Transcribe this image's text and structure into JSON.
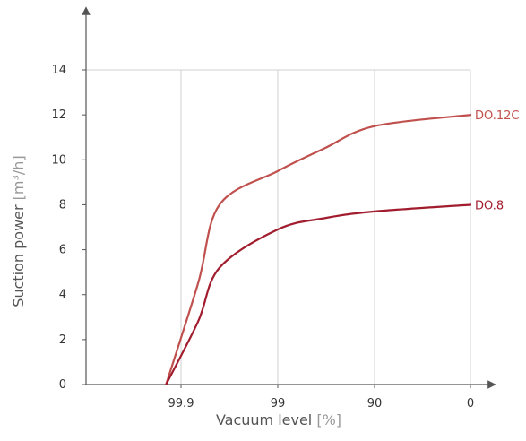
{
  "chart_data": {
    "type": "line",
    "title": "",
    "xlabel": "Vacuum level",
    "xlabel_unit": "%",
    "ylabel": "Suction power",
    "ylabel_unit": "m³/h",
    "x_scale": "log-remaining (ticks show vacuum % at 0.1, 1, 10, 100 % remaining pressure)",
    "x_ticks": [
      "99.9",
      "99",
      "90",
      "0"
    ],
    "y_ticks": [
      0,
      2,
      4,
      6,
      8,
      10,
      12,
      14
    ],
    "ylim": [
      0,
      14
    ],
    "grid": "vertical gridlines at x ticks, horizontal at y = 14",
    "colors": {
      "DO.12C": "#c0504d",
      "DO.8": "#a11d2e",
      "axis": "#555555",
      "grid": "#d0d0d0"
    },
    "series": [
      {
        "name": "DO.12C",
        "label": "DO.12C",
        "points": [
          {
            "x": 99.93,
            "y": 0
          },
          {
            "x": 99.85,
            "y": 4.5
          },
          {
            "x": 99.75,
            "y": 8.0
          },
          {
            "x": 99.0,
            "y": 9.5
          },
          {
            "x": 97.0,
            "y": 10.5
          },
          {
            "x": 90.0,
            "y": 11.5
          },
          {
            "x": 0,
            "y": 12.0
          }
        ]
      },
      {
        "name": "DO.8",
        "label": "DO.8",
        "points": [
          {
            "x": 99.93,
            "y": 0
          },
          {
            "x": 99.85,
            "y": 2.8
          },
          {
            "x": 99.75,
            "y": 5.2
          },
          {
            "x": 99.0,
            "y": 6.9
          },
          {
            "x": 97.0,
            "y": 7.4
          },
          {
            "x": 90.0,
            "y": 7.7
          },
          {
            "x": 0,
            "y": 8.0
          }
        ]
      }
    ]
  }
}
